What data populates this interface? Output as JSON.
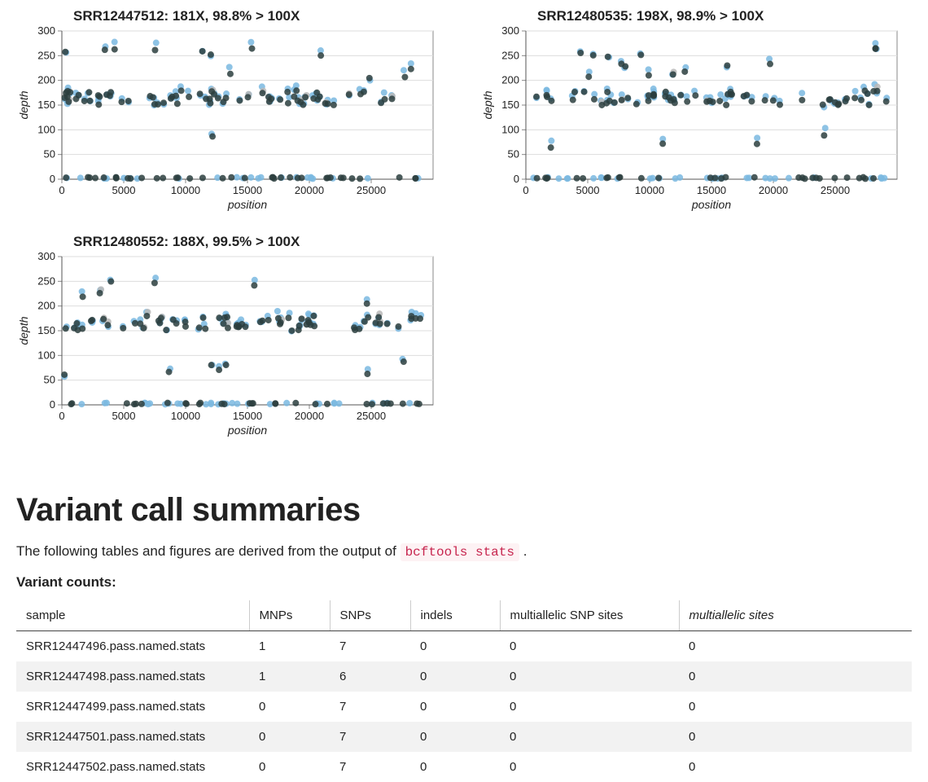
{
  "charts": [
    {
      "title": "SRR12447512: 181X, 98.8% > 100X",
      "type": "scatter",
      "xlabel": "position",
      "ylabel": "depth",
      "xlim": [
        0,
        30000
      ],
      "ylim": [
        0,
        300
      ],
      "xticks": [
        0,
        5000,
        10000,
        15000,
        20000,
        25000
      ],
      "yticks": [
        0,
        50,
        100,
        150,
        200,
        250,
        300
      ],
      "label_fontsize": 14,
      "title_fontsize": 17,
      "label_fontstyle": "italic",
      "background_color": "#ffffff",
      "grid_color": "#dddddd",
      "marker_size": 6,
      "marker_opacity": 0.85,
      "series_colors": {
        "a": "#7ab8e0",
        "b": "#2c3e3e",
        "c": "#b8b8b8"
      },
      "seed": 11
    },
    {
      "title": "SRR12480535: 198X, 98.9% > 100X",
      "type": "scatter",
      "xlabel": "position",
      "ylabel": "depth",
      "xlim": [
        0,
        30000
      ],
      "ylim": [
        0,
        300
      ],
      "xticks": [
        0,
        5000,
        10000,
        15000,
        20000,
        25000
      ],
      "yticks": [
        0,
        50,
        100,
        150,
        200,
        250,
        300
      ],
      "label_fontsize": 14,
      "title_fontsize": 17,
      "label_fontstyle": "italic",
      "background_color": "#ffffff",
      "grid_color": "#dddddd",
      "marker_size": 6,
      "marker_opacity": 0.85,
      "series_colors": {
        "a": "#7ab8e0",
        "b": "#2c3e3e",
        "c": "#b8b8b8"
      },
      "seed": 27
    },
    {
      "title": "SRR12480552: 188X, 99.5% > 100X",
      "type": "scatter",
      "xlabel": "position",
      "ylabel": "depth",
      "xlim": [
        0,
        30000
      ],
      "ylim": [
        0,
        300
      ],
      "xticks": [
        0,
        5000,
        10000,
        15000,
        20000,
        25000
      ],
      "yticks": [
        0,
        50,
        100,
        150,
        200,
        250,
        300
      ],
      "label_fontsize": 14,
      "title_fontsize": 17,
      "label_fontstyle": "italic",
      "background_color": "#ffffff",
      "grid_color": "#dddddd",
      "marker_size": 6,
      "marker_opacity": 0.85,
      "series_colors": {
        "a": "#7ab8e0",
        "b": "#2c3e3e",
        "c": "#b8b8b8"
      },
      "seed": 42
    }
  ],
  "section": {
    "title": "Variant call summaries",
    "description_before": "The following tables and figures are derived from the output of ",
    "code": "bcftools stats",
    "description_after": " .",
    "table_header": "Variant counts:"
  },
  "table": {
    "columns": [
      {
        "label": "sample",
        "italic": false,
        "width": "26%"
      },
      {
        "label": "MNPs",
        "italic": false,
        "width": "9%"
      },
      {
        "label": "SNPs",
        "italic": false,
        "width": "9%"
      },
      {
        "label": "indels",
        "italic": false,
        "width": "10%"
      },
      {
        "label": "multiallelic SNP sites",
        "italic": false,
        "width": "20%"
      },
      {
        "label": "multiallelic sites",
        "italic": true,
        "width": "26%"
      }
    ],
    "rows": [
      [
        "SRR12447496.pass.named.stats",
        "1",
        "7",
        "0",
        "0",
        "0"
      ],
      [
        "SRR12447498.pass.named.stats",
        "1",
        "6",
        "0",
        "0",
        "0"
      ],
      [
        "SRR12447499.pass.named.stats",
        "0",
        "7",
        "0",
        "0",
        "0"
      ],
      [
        "SRR12447501.pass.named.stats",
        "0",
        "7",
        "0",
        "0",
        "0"
      ],
      [
        "SRR12447502.pass.named.stats",
        "0",
        "7",
        "0",
        "0",
        "0"
      ]
    ]
  }
}
